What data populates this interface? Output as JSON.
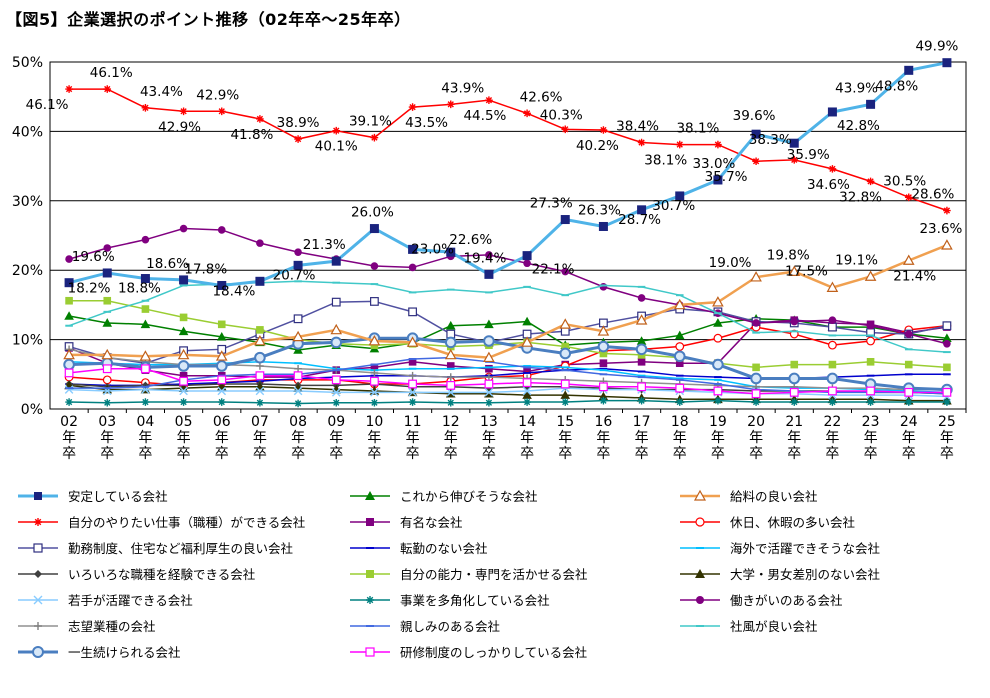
{
  "chart_data": {
    "type": "line",
    "title": "【図5】企業選択のポイント推移（02年卒～25年卒）",
    "xlabel": "",
    "ylabel": "",
    "ylim": [
      0,
      50
    ],
    "yticks": [
      "0%",
      "10%",
      "20%",
      "30%",
      "40%",
      "50%"
    ],
    "grid": "horizontal",
    "legend_position": "bottom",
    "categories": [
      "02\n年\n卒",
      "03\n年\n卒",
      "04\n年\n卒",
      "05\n年\n卒",
      "06\n年\n卒",
      "07\n年\n卒",
      "08\n年\n卒",
      "09\n年\n卒",
      "10\n年\n卒",
      "11\n年\n卒",
      "12\n年\n卒",
      "13\n年\n卒",
      "14\n年\n卒",
      "15\n年\n卒",
      "16\n年\n卒",
      "17\n年\n卒",
      "18\n年\n卒",
      "19\n年\n卒",
      "20\n年\n卒",
      "21\n年\n卒",
      "22\n年\n卒",
      "23\n年\n卒",
      "24\n年\n卒",
      "25\n年\n卒"
    ],
    "series": [
      {
        "name": "安定している会社",
        "color": "#4fb3e8",
        "marker": "square-filled",
        "marker_color": "#1a237e",
        "width": 3,
        "values": [
          18.2,
          19.6,
          18.8,
          18.6,
          17.8,
          18.4,
          20.7,
          21.3,
          26.0,
          23.0,
          22.6,
          19.4,
          22.1,
          27.3,
          26.3,
          28.7,
          30.7,
          33.0,
          39.6,
          38.3,
          42.8,
          43.9,
          48.8,
          49.9
        ]
      },
      {
        "name": "これから伸びそうな会社",
        "color": "#008000",
        "marker": "triangle-filled",
        "marker_color": "#008000",
        "width": 1.5,
        "values": [
          13.4,
          12.4,
          12.2,
          11.2,
          10.4,
          9.6,
          8.5,
          9.2,
          8.7,
          9.5,
          12.0,
          12.2,
          12.6,
          9.2,
          9.6,
          9.8,
          10.6,
          12.4,
          13.0,
          12.8,
          11.8,
          11.8,
          10.8,
          10.2
        ]
      },
      {
        "name": "給料の良い会社",
        "color": "#f0a050",
        "marker": "triangle-open",
        "marker_color": "#c0601a",
        "width": 2.5,
        "values": [
          7.8,
          7.8,
          7.6,
          7.8,
          7.6,
          9.8,
          10.4,
          11.4,
          9.8,
          9.6,
          7.8,
          7.4,
          9.6,
          12.2,
          11.2,
          12.8,
          15.0,
          15.4,
          19.0,
          19.8,
          17.5,
          19.1,
          21.4,
          23.6
        ]
      },
      {
        "name": "自分のやりたい仕事（職種）ができる会社",
        "color": "#ff0000",
        "marker": "asterisk",
        "marker_color": "#ff0000",
        "width": 1.5,
        "values": [
          46.1,
          46.1,
          43.4,
          42.9,
          42.9,
          41.8,
          38.9,
          40.1,
          39.1,
          43.5,
          43.9,
          44.5,
          42.6,
          40.3,
          40.2,
          38.4,
          38.1,
          38.1,
          35.7,
          35.9,
          34.6,
          32.8,
          30.5,
          28.6
        ]
      },
      {
        "name": "有名な会社",
        "color": "#800080",
        "marker": "square-filled",
        "marker_color": "#800080",
        "width": 1.5,
        "values": [
          8.8,
          6.6,
          5.6,
          4.8,
          4.8,
          4.6,
          4.6,
          5.6,
          6.0,
          6.8,
          6.2,
          5.8,
          5.4,
          6.4,
          6.6,
          6.8,
          6.6,
          6.6,
          12.4,
          12.8,
          12.4,
          12.2,
          11.0,
          11.8
        ]
      },
      {
        "name": "休日、休暇の多い会社",
        "color": "#ff0000",
        "marker": "circle-open",
        "marker_color": "#ff0000",
        "width": 1.5,
        "values": [
          4.6,
          4.2,
          3.8,
          3.4,
          3.8,
          4.2,
          4.2,
          4.2,
          3.6,
          3.6,
          4.0,
          4.6,
          4.8,
          6.2,
          8.4,
          8.6,
          9.0,
          10.2,
          11.8,
          10.8,
          9.2,
          9.8,
          11.4,
          12.0
        ]
      },
      {
        "name": "勤務制度、住宅など福利厚生の良い会社",
        "color": "#5050a0",
        "marker": "square-open",
        "marker_color": "#303080",
        "width": 1.5,
        "values": [
          9.0,
          7.4,
          6.6,
          8.4,
          8.6,
          10.8,
          13.0,
          15.4,
          15.5,
          14.0,
          10.8,
          9.6,
          10.8,
          11.2,
          12.4,
          13.4,
          14.4,
          14.0,
          12.6,
          12.4,
          11.8,
          11.0,
          10.8,
          12.0
        ]
      },
      {
        "name": "転勤のない会社",
        "color": "#0000cd",
        "marker": "dash",
        "marker_color": "#0000cd",
        "width": 1.5,
        "values": [
          3.6,
          3.4,
          3.4,
          3.6,
          3.8,
          4.0,
          4.4,
          4.6,
          4.8,
          4.8,
          4.6,
          4.8,
          5.2,
          5.6,
          5.8,
          5.4,
          4.8,
          4.6,
          4.4,
          4.4,
          4.6,
          4.8,
          5.0,
          5.0
        ]
      },
      {
        "name": "海外で活躍できそうな会社",
        "color": "#00bfff",
        "marker": "dash",
        "marker_color": "#00bfff",
        "width": 1.5,
        "values": [
          6.8,
          6.6,
          6.4,
          6.4,
          6.6,
          6.8,
          6.6,
          5.8,
          5.6,
          5.8,
          5.8,
          6.0,
          6.2,
          6.0,
          5.6,
          4.8,
          4.4,
          4.2,
          3.2,
          3.0,
          3.0,
          2.8,
          2.6,
          2.4
        ]
      },
      {
        "name": "いろいろな職種を経験できる会社",
        "color": "#404040",
        "marker": "diamond-filled",
        "marker_color": "#404040",
        "width": 1.5,
        "values": [
          3.6,
          3.2,
          3.4,
          3.4,
          3.6,
          3.6,
          3.4,
          3.4,
          3.6,
          3.2,
          3.2,
          3.0,
          3.2,
          3.2,
          3.0,
          2.8,
          2.8,
          2.8,
          2.6,
          2.6,
          2.6,
          2.4,
          2.4,
          2.2
        ]
      },
      {
        "name": "自分の能力・専門を活かせる会社",
        "color": "#9acd32",
        "marker": "square-filled",
        "marker_color": "#9acd32",
        "width": 1.5,
        "values": [
          15.6,
          15.6,
          14.4,
          13.2,
          12.2,
          11.4,
          10.0,
          9.4,
          9.2,
          9.4,
          9.0,
          9.2,
          9.6,
          9.0,
          8.0,
          7.8,
          7.4,
          6.6,
          6.0,
          6.4,
          6.4,
          6.8,
          6.4,
          6.0
        ]
      },
      {
        "name": "大学・男女差別のない会社",
        "color": "#333300",
        "marker": "triangle-filled",
        "marker_color": "#333300",
        "width": 1.5,
        "values": [
          3.4,
          2.8,
          2.8,
          3.0,
          3.2,
          3.2,
          3.0,
          2.8,
          2.6,
          2.4,
          2.2,
          2.2,
          2.0,
          2.0,
          1.8,
          1.6,
          1.4,
          1.4,
          1.4,
          1.4,
          1.4,
          1.4,
          1.2,
          1.2
        ]
      },
      {
        "name": "若手が活躍できる会社",
        "color": "#88ccff",
        "marker": "x",
        "marker_color": "#88ccff",
        "width": 1.5,
        "values": [
          2.8,
          2.6,
          2.8,
          2.6,
          2.6,
          2.6,
          2.6,
          2.4,
          2.4,
          2.4,
          2.4,
          2.4,
          2.6,
          3.0,
          2.8,
          2.8,
          2.6,
          2.4,
          2.2,
          2.2,
          2.0,
          2.0,
          2.0,
          1.8
        ]
      },
      {
        "name": "事業を多角化している会社",
        "color": "#008080",
        "marker": "asterisk",
        "marker_color": "#008080",
        "width": 1.5,
        "values": [
          1.0,
          0.9,
          1.0,
          1.0,
          1.0,
          0.9,
          0.8,
          0.9,
          0.9,
          1.0,
          0.9,
          0.9,
          1.0,
          1.0,
          1.2,
          1.2,
          1.0,
          1.2,
          1.0,
          1.0,
          1.0,
          1.0,
          1.0,
          1.0
        ]
      },
      {
        "name": "働きがいのある会社",
        "color": "#800080",
        "marker": "circle-filled",
        "marker_color": "#800080",
        "width": 1.5,
        "values": [
          21.6,
          23.2,
          24.4,
          26.0,
          25.8,
          23.9,
          22.6,
          21.6,
          20.6,
          20.4,
          22.0,
          22.2,
          21.0,
          19.8,
          17.6,
          16.0,
          15.0,
          13.8,
          12.4,
          12.6,
          12.8,
          12.0,
          10.8,
          9.4
        ]
      },
      {
        "name": "志望業種の会社",
        "color": "#909090",
        "marker": "plus",
        "marker_color": "#808080",
        "width": 1.5,
        "values": [
          8.6,
          7.4,
          6.8,
          6.4,
          6.4,
          6.2,
          5.8,
          5.6,
          5.2,
          4.8,
          4.6,
          4.6,
          4.4,
          4.2,
          4.0,
          3.8,
          3.6,
          3.4,
          3.2,
          3.2,
          3.0,
          3.0,
          2.8,
          2.8
        ]
      },
      {
        "name": "親しみのある会社",
        "color": "#4169e1",
        "marker": "dash",
        "marker_color": "#4169e1",
        "width": 1.5,
        "values": [
          3.0,
          3.0,
          3.2,
          4.2,
          4.8,
          5.0,
          5.0,
          5.6,
          6.4,
          7.2,
          7.4,
          6.8,
          6.0,
          5.6,
          5.0,
          4.6,
          4.2,
          3.6,
          2.8,
          2.6,
          2.4,
          2.4,
          2.4,
          2.2
        ]
      },
      {
        "name": "社風が良い会社",
        "color": "#40c8c8",
        "marker": "dash",
        "marker_color": "#40c8c8",
        "width": 1.5,
        "values": [
          12.0,
          14.0,
          15.6,
          17.8,
          18.0,
          18.2,
          18.4,
          18.2,
          18.0,
          16.8,
          17.2,
          16.8,
          17.6,
          16.4,
          17.8,
          17.6,
          16.4,
          13.8,
          11.0,
          11.2,
          10.6,
          10.6,
          8.6,
          8.2
        ]
      },
      {
        "name": "一生続けられる会社",
        "color": "#4a7ec0",
        "marker": "circle-ring",
        "marker_color": "#4a7ec0",
        "width": 3,
        "values": [
          6.4,
          6.6,
          6.0,
          6.2,
          6.2,
          7.4,
          9.4,
          9.6,
          10.2,
          10.2,
          9.6,
          9.8,
          8.8,
          8.0,
          9.0,
          8.6,
          7.6,
          6.4,
          4.4,
          4.4,
          4.4,
          3.6,
          3.0,
          2.8
        ]
      },
      {
        "name": "研修制度のしっかりしている会社",
        "color": "#ff00ff",
        "marker": "square-open",
        "marker_color": "#ff00ff",
        "width": 1.5,
        "values": [
          5.2,
          5.8,
          5.8,
          4.0,
          4.2,
          4.8,
          4.8,
          4.2,
          4.0,
          3.6,
          3.4,
          3.6,
          3.8,
          3.6,
          3.2,
          3.2,
          3.0,
          2.6,
          2.2,
          2.4,
          2.6,
          2.6,
          2.4,
          2.4
        ]
      }
    ],
    "annotations": [
      {
        "series": 0,
        "index": 1,
        "text": "19.6%"
      },
      {
        "series": 0,
        "index": 2,
        "text": "18.8%"
      },
      {
        "series": 0,
        "index": 3,
        "text": "18.6%"
      },
      {
        "series": 0,
        "index": 4,
        "text": "17.8%"
      },
      {
        "series": 0,
        "index": 5,
        "text": "18.4%"
      },
      {
        "series": 0,
        "index": 6,
        "text": "20.7%"
      },
      {
        "series": 0,
        "index": 7,
        "text": "21.3%"
      },
      {
        "series": 0,
        "index": 8,
        "text": "26.0%"
      },
      {
        "series": 0,
        "index": 9,
        "text": "23.0%"
      },
      {
        "series": 0,
        "index": 10,
        "text": "22.6%"
      },
      {
        "series": 0,
        "index": 11,
        "text": "19.4%"
      },
      {
        "series": 0,
        "index": 12,
        "text": "22.1%"
      },
      {
        "series": 0,
        "index": 13,
        "text": "27.3%"
      },
      {
        "series": 0,
        "index": 14,
        "text": "26.3%"
      },
      {
        "series": 0,
        "index": 15,
        "text": "28.7%"
      },
      {
        "series": 0,
        "index": 16,
        "text": "30.7%"
      },
      {
        "series": 0,
        "index": 17,
        "text": "33.0%"
      },
      {
        "series": 0,
        "index": 18,
        "text": "39.6%"
      },
      {
        "series": 0,
        "index": 19,
        "text": "38.3%"
      },
      {
        "series": 0,
        "index": 20,
        "text": "42.8%"
      },
      {
        "series": 0,
        "index": 21,
        "text": "43.9%"
      },
      {
        "series": 0,
        "index": 22,
        "text": "48.8%"
      },
      {
        "series": 0,
        "index": 23,
        "text": "49.9%"
      },
      {
        "series": 0,
        "index": 0,
        "text": "18.2%"
      },
      {
        "series": 3,
        "index": 0,
        "text": "46.1%"
      },
      {
        "series": 3,
        "index": 1,
        "text": "46.1%"
      },
      {
        "series": 3,
        "index": 2,
        "text": "43.4%"
      },
      {
        "series": 3,
        "index": 3,
        "text": "42.9%"
      },
      {
        "series": 3,
        "index": 4,
        "text": "42.9%"
      },
      {
        "series": 3,
        "index": 5,
        "text": "41.8%"
      },
      {
        "series": 3,
        "index": 6,
        "text": "38.9%"
      },
      {
        "series": 3,
        "index": 7,
        "text": "40.1%"
      },
      {
        "series": 3,
        "index": 8,
        "text": "39.1%"
      },
      {
        "series": 3,
        "index": 9,
        "text": "43.5%"
      },
      {
        "series": 3,
        "index": 10,
        "text": "43.9%"
      },
      {
        "series": 3,
        "index": 11,
        "text": "44.5%"
      },
      {
        "series": 3,
        "index": 12,
        "text": "42.6%"
      },
      {
        "series": 3,
        "index": 13,
        "text": "40.3%"
      },
      {
        "series": 3,
        "index": 14,
        "text": "40.2%"
      },
      {
        "series": 3,
        "index": 15,
        "text": "38.4%"
      },
      {
        "series": 3,
        "index": 16,
        "text": "38.1%"
      },
      {
        "series": 3,
        "index": 17,
        "text": "38.1%"
      },
      {
        "series": 3,
        "index": 18,
        "text": "35.7%"
      },
      {
        "series": 3,
        "index": 19,
        "text": "35.9%"
      },
      {
        "series": 3,
        "index": 20,
        "text": "34.6%"
      },
      {
        "series": 3,
        "index": 21,
        "text": "32.8%"
      },
      {
        "series": 3,
        "index": 22,
        "text": "30.5%"
      },
      {
        "series": 3,
        "index": 23,
        "text": "28.6%"
      },
      {
        "series": 2,
        "index": 18,
        "text": "19.0%"
      },
      {
        "series": 2,
        "index": 19,
        "text": "19.8%"
      },
      {
        "series": 2,
        "index": 20,
        "text": "17.5%"
      },
      {
        "series": 2,
        "index": 21,
        "text": "19.1%"
      },
      {
        "series": 2,
        "index": 22,
        "text": "21.4%"
      },
      {
        "series": 2,
        "index": 23,
        "text": "23.6%"
      }
    ]
  }
}
